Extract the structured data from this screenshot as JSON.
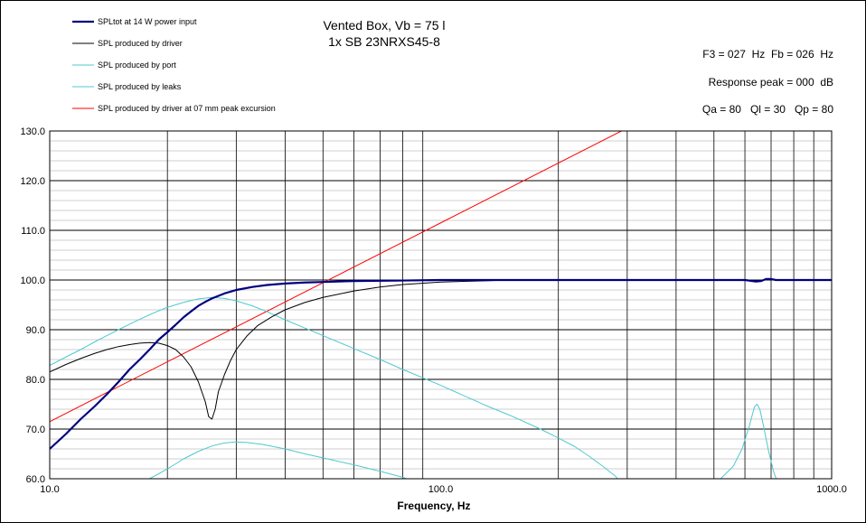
{
  "chart_data": {
    "type": "line",
    "title": "Vented Box, Vb = 75 l",
    "subtitle": "1x SB 23NRXS45-8",
    "xlabel": "Frequency, Hz",
    "ylabel": "",
    "xscale": "log",
    "xlim": [
      10,
      1000
    ],
    "ylim": [
      60,
      130
    ],
    "x_tick_labels": [
      "10.0",
      "100.0",
      "1000.0"
    ],
    "y_ticks": [
      "60.0",
      "70.0",
      "80.0",
      "90.0",
      "100.0",
      "110.0",
      "120.0",
      "130.0"
    ],
    "grid": true,
    "legend_position": "top-left",
    "info": {
      "f3": "F3 = 027  Hz  Fb = 026  Hz",
      "peak": "Response peak = 000  dB",
      "q": "Qa = 80   Ql = 30   Qp = 80"
    },
    "series": [
      {
        "name": "SPLtot at 14 W power input",
        "color": "#00007f",
        "points": [
          [
            10,
            66
          ],
          [
            11,
            69
          ],
          [
            12,
            72
          ],
          [
            13,
            74.5
          ],
          [
            14,
            77
          ],
          [
            15,
            79.5
          ],
          [
            16,
            82
          ],
          [
            17,
            84
          ],
          [
            18,
            86
          ],
          [
            19,
            88
          ],
          [
            20,
            89.5
          ],
          [
            21,
            91
          ],
          [
            22,
            92.5
          ],
          [
            23,
            93.7
          ],
          [
            24,
            94.8
          ],
          [
            25,
            95.6
          ],
          [
            26,
            96.3
          ],
          [
            28,
            97.3
          ],
          [
            30,
            98
          ],
          [
            33,
            98.6
          ],
          [
            36,
            99
          ],
          [
            40,
            99.3
          ],
          [
            45,
            99.5
          ],
          [
            50,
            99.6
          ],
          [
            60,
            99.8
          ],
          [
            80,
            99.9
          ],
          [
            100,
            100
          ],
          [
            200,
            100
          ],
          [
            400,
            100
          ],
          [
            500,
            100
          ],
          [
            600,
            100
          ],
          [
            640,
            99.7
          ],
          [
            660,
            99.8
          ],
          [
            680,
            100.2
          ],
          [
            700,
            100.2
          ],
          [
            720,
            100
          ],
          [
            1000,
            100
          ]
        ]
      },
      {
        "name": "SPL produced by driver",
        "color": "#000000",
        "points": [
          [
            10,
            81.5
          ],
          [
            11,
            83
          ],
          [
            12,
            84.2
          ],
          [
            13,
            85.2
          ],
          [
            14,
            86
          ],
          [
            15,
            86.6
          ],
          [
            16,
            87
          ],
          [
            17,
            87.3
          ],
          [
            18,
            87.4
          ],
          [
            19,
            87.3
          ],
          [
            20,
            86.8
          ],
          [
            21,
            86
          ],
          [
            22,
            84.5
          ],
          [
            23,
            82.5
          ],
          [
            24,
            79.5
          ],
          [
            25,
            75.5
          ],
          [
            25.5,
            72.5
          ],
          [
            26,
            72
          ],
          [
            26.5,
            74
          ],
          [
            27,
            77.5
          ],
          [
            28,
            81
          ],
          [
            29,
            83.8
          ],
          [
            30,
            86
          ],
          [
            32,
            88.8
          ],
          [
            34,
            90.8
          ],
          [
            37,
            92.6
          ],
          [
            40,
            94
          ],
          [
            45,
            95.5
          ],
          [
            50,
            96.5
          ],
          [
            60,
            97.8
          ],
          [
            70,
            98.6
          ],
          [
            80,
            99.1
          ],
          [
            100,
            99.6
          ],
          [
            130,
            99.85
          ],
          [
            150,
            100
          ],
          [
            200,
            100
          ],
          [
            400,
            100
          ],
          [
            600,
            100
          ],
          [
            640,
            99.7
          ],
          [
            660,
            99.8
          ],
          [
            680,
            100.2
          ],
          [
            700,
            100.2
          ],
          [
            720,
            100
          ],
          [
            1000,
            100
          ]
        ]
      },
      {
        "name": "SPL produced by port",
        "color": "#4fc8cf",
        "points": [
          [
            10,
            82.8
          ],
          [
            11,
            84.5
          ],
          [
            12,
            86
          ],
          [
            13,
            87.5
          ],
          [
            14,
            88.8
          ],
          [
            15,
            90
          ],
          [
            16,
            91.1
          ],
          [
            17,
            92.1
          ],
          [
            18,
            93
          ],
          [
            19,
            93.8
          ],
          [
            20,
            94.5
          ],
          [
            22,
            95.5
          ],
          [
            24,
            96.2
          ],
          [
            26,
            96.5
          ],
          [
            28,
            96.3
          ],
          [
            30,
            95.8
          ],
          [
            33,
            94.8
          ],
          [
            36,
            93.6
          ],
          [
            40,
            92
          ],
          [
            45,
            90.3
          ],
          [
            50,
            88.8
          ],
          [
            60,
            86.2
          ],
          [
            70,
            84
          ],
          [
            80,
            82
          ],
          [
            100,
            78.8
          ],
          [
            130,
            74.8
          ],
          [
            150,
            72.8
          ],
          [
            180,
            70
          ],
          [
            200,
            68.2
          ],
          [
            220,
            66.5
          ],
          [
            240,
            64.5
          ],
          [
            260,
            62.5
          ],
          [
            280,
            60.5
          ],
          [
            290,
            59
          ]
        ]
      },
      {
        "name": "SPL produced by leaks",
        "color": "#4fc8cf",
        "points": [
          [
            18,
            60
          ],
          [
            19,
            61
          ],
          [
            20,
            62
          ],
          [
            21,
            63
          ],
          [
            22,
            64
          ],
          [
            24,
            65.5
          ],
          [
            26,
            66.6
          ],
          [
            28,
            67.2
          ],
          [
            30,
            67.4
          ],
          [
            32,
            67.3
          ],
          [
            35,
            66.9
          ],
          [
            40,
            66
          ],
          [
            45,
            65
          ],
          [
            50,
            64.2
          ],
          [
            60,
            62.8
          ],
          [
            70,
            61.5
          ],
          [
            80,
            60.3
          ],
          [
            85,
            59.5
          ]
        ]
      },
      {
        "name": "SPL produced by leaks",
        "color": "#4fc8cf",
        "points": [
          [
            520,
            60
          ],
          [
            560,
            62.5
          ],
          [
            590,
            66
          ],
          [
            615,
            70.5
          ],
          [
            635,
            74.5
          ],
          [
            645,
            75
          ],
          [
            655,
            74
          ],
          [
            670,
            70.5
          ],
          [
            690,
            65.5
          ],
          [
            710,
            61.5
          ],
          [
            725,
            59.5
          ]
        ]
      },
      {
        "name": "SPL produced by driver at 07  mm peak excursion",
        "color": "#ff0000",
        "points": [
          [
            10,
            71.5
          ],
          [
            100,
            111.5
          ],
          [
            1000,
            151.5
          ]
        ]
      }
    ]
  }
}
